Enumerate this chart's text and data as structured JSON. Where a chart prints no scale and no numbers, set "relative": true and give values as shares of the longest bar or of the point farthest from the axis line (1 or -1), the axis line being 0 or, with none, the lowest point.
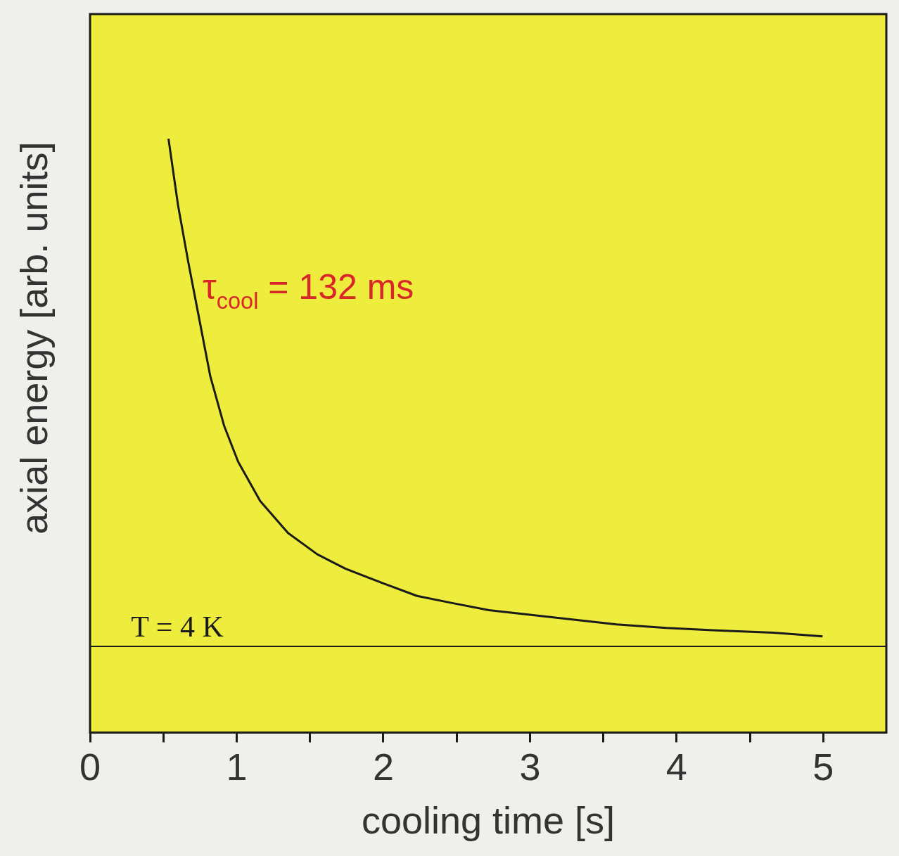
{
  "chart_data": {
    "type": "line",
    "xlabel": "cooling time [s]",
    "ylabel": "axial energy [arb. units]",
    "relative": true,
    "x": [
      0.535,
      0.6,
      0.67,
      0.745,
      0.82,
      0.915,
      1.01,
      1.16,
      1.35,
      1.55,
      1.74,
      1.99,
      2.23,
      2.47,
      2.72,
      3.01,
      3.3,
      3.59,
      3.93,
      4.27,
      4.66,
      4.995
    ],
    "series": [
      {
        "color": "#1a1a1a",
        "values": [
          1.0,
          0.888,
          0.792,
          0.696,
          0.6,
          0.516,
          0.456,
          0.39,
          0.336,
          0.3,
          0.276,
          0.252,
          0.23,
          0.218,
          0.206,
          0.198,
          0.19,
          0.182,
          0.176,
          0.172,
          0.168,
          0.162
        ]
      }
    ],
    "xlim": [
      0,
      5.43
    ],
    "xticks": [
      0,
      {
        "value": 0.5,
        "label": null
      },
      1,
      {
        "value": 1.5,
        "label": null
      },
      2,
      {
        "value": 2.5,
        "label": null
      },
      3,
      {
        "value": 3.5,
        "label": null
      },
      4,
      {
        "value": 4.5,
        "label": null
      },
      5
    ],
    "ref_lines": [
      {
        "axis": "y",
        "value": 0.145,
        "color": "#1a1a1a"
      }
    ],
    "annotations": [
      "τ$_{cool}$ = 132 ms",
      {
        "text": "T = 4 K",
        "x": 0.28,
        "y": 0.145
      }
    ],
    "grid": false,
    "legend": false,
    "marker": "none",
    "line_style": "solid"
  }
}
